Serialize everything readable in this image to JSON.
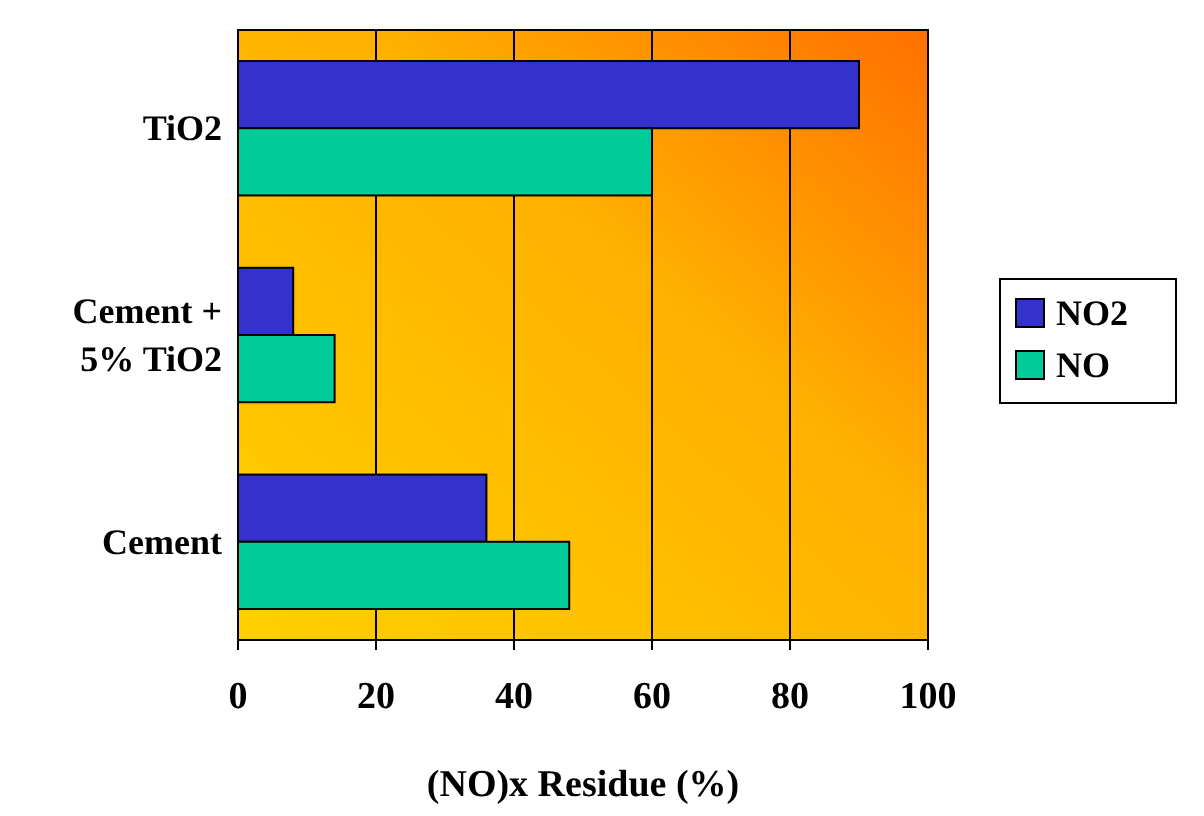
{
  "chart_data": {
    "type": "bar",
    "orientation": "horizontal",
    "xlabel": "(NO)x Residue (%)",
    "categories": [
      "TiO2",
      "Cement + 5% TiO2",
      "Cement"
    ],
    "series": [
      {
        "name": "NO2",
        "color": "#3333cc",
        "values": [
          90,
          8,
          36
        ]
      },
      {
        "name": "NO",
        "color": "#00cc99",
        "values": [
          60,
          14,
          48
        ]
      }
    ],
    "xlim": [
      0,
      100
    ],
    "xticks": [
      0,
      20,
      40,
      60,
      80,
      100
    ],
    "grid": "x",
    "legend": "right"
  }
}
